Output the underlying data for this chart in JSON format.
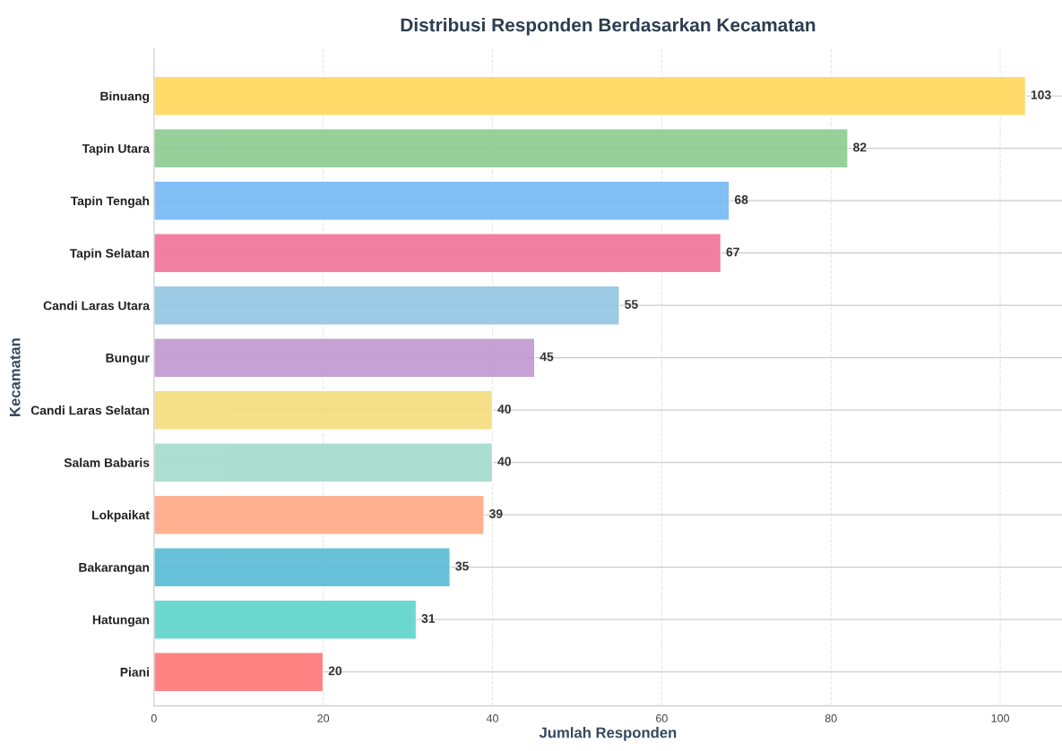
{
  "chart_data": {
    "type": "bar",
    "orientation": "horizontal",
    "title": "Distribusi Responden Berdasarkan Kecamatan",
    "xlabel": "Jumlah Responden",
    "ylabel": "Kecamatan",
    "categories": [
      "Binuang",
      "Tapin Utara",
      "Tapin Tengah",
      "Tapin Selatan",
      "Candi Laras Utara",
      "Bungur",
      "Candi Laras Selatan",
      "Salam Babaris",
      "Lokpaikat",
      "Bakarangan",
      "Hatungan",
      "Piani"
    ],
    "values": [
      103,
      82,
      68,
      67,
      55,
      45,
      40,
      40,
      39,
      35,
      31,
      20
    ],
    "colors": [
      "#ffd95a",
      "#8ccb8f",
      "#74b9f5",
      "#f0729a",
      "#93c5e3",
      "#c097d0",
      "#f4dc7c",
      "#a3dbcd",
      "#ffa884",
      "#58bcd6",
      "#5ed4cb",
      "#ff7675"
    ],
    "xlim": [
      0,
      107.3
    ],
    "xticks": [
      0,
      20,
      40,
      60,
      80,
      100
    ],
    "grid": true,
    "data_labels": true
  }
}
